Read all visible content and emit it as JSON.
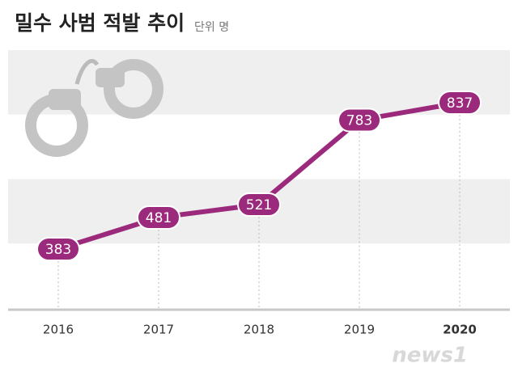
{
  "chart_data": {
    "type": "line",
    "title": "밀수 사범 적발 추이",
    "subtitle": "단위 명",
    "categories": [
      "2016",
      "2017",
      "2018",
      "2019",
      "2020"
    ],
    "series": [
      {
        "name": "밀수 사범 적발",
        "color": "#9c2a7c",
        "values": [
          383,
          481,
          521,
          783,
          837
        ]
      }
    ],
    "ylim": [
      200,
      1000
    ],
    "watermark": "news1"
  }
}
